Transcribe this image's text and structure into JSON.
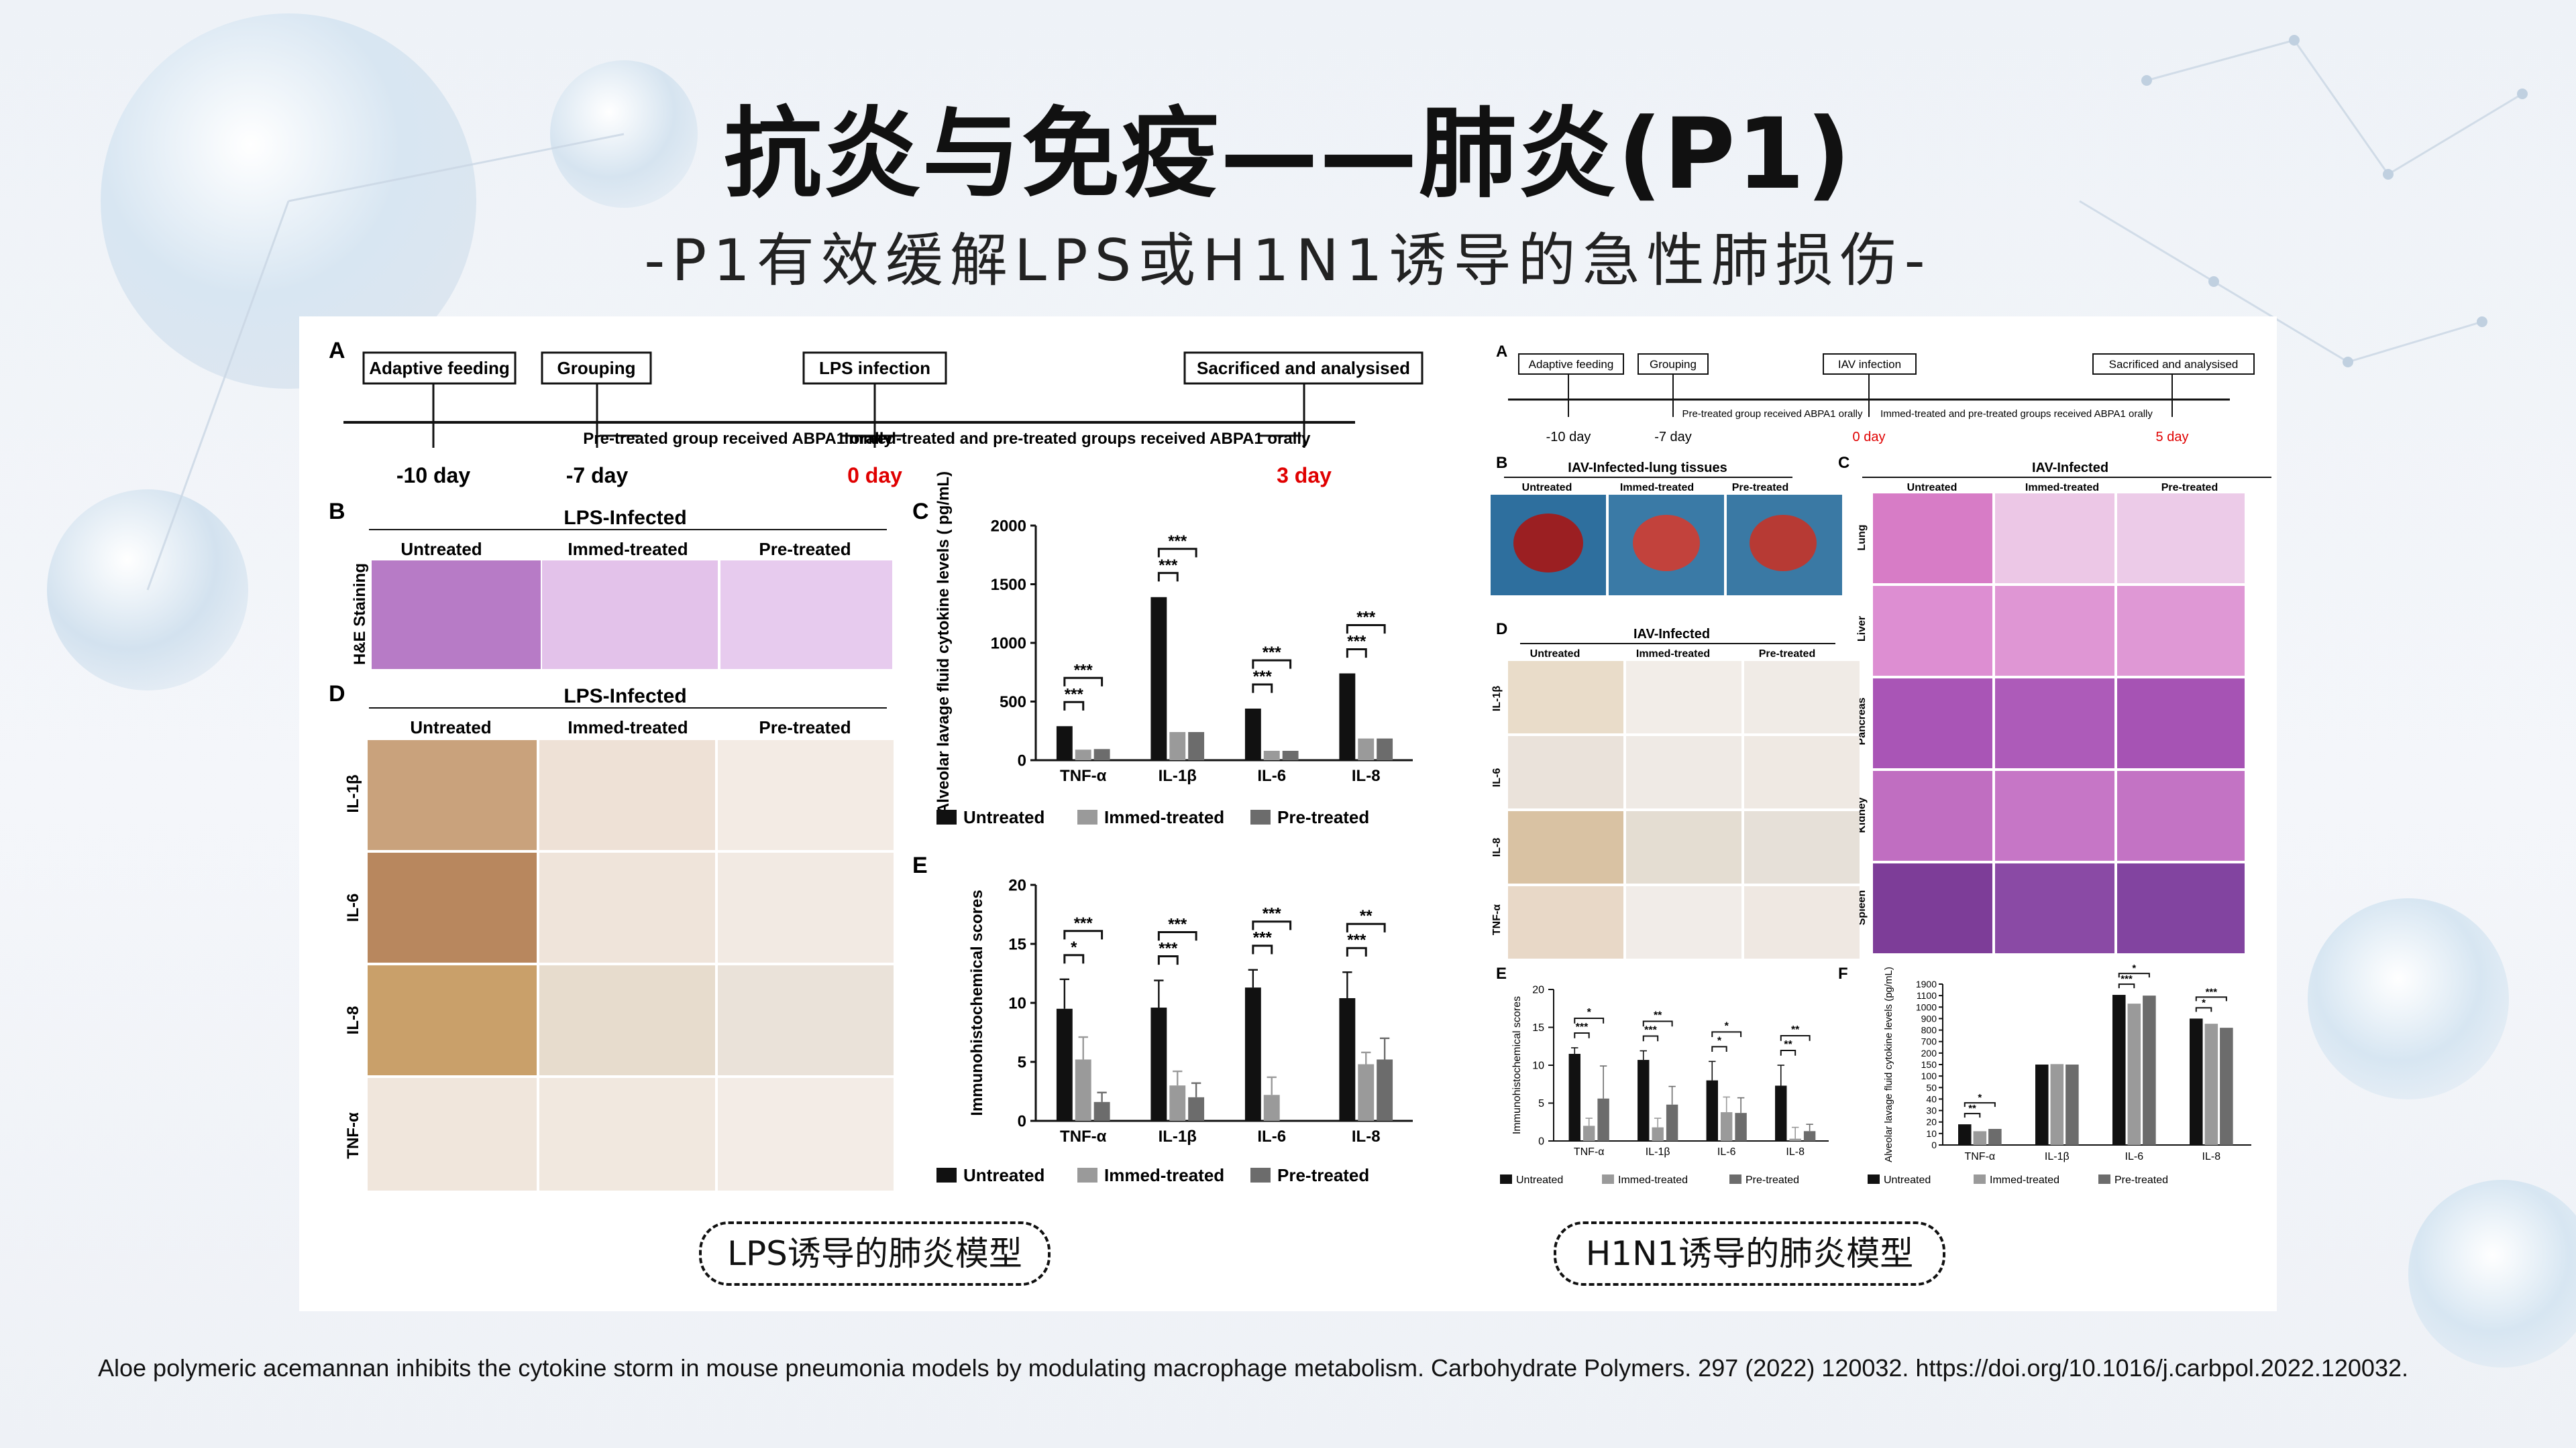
{
  "title": "抗炎与免疫——肺炎(P1)",
  "subtitle": "-P1有效缓解LPS或H1N1诱导的急性肺损伤-",
  "citation": "Aloe polymeric acemannan inhibits the cytokine storm in mouse pneumonia models by modulating macrophage metabolism. Carbohydrate Polymers. 297 (2022) 120032.  https://doi.org/10.1016/j.carbpol.2022.120032.",
  "captions": {
    "lps": "LPS诱导的肺炎模型",
    "h1n1": "H1N1诱导的肺炎模型"
  },
  "colors": {
    "untreated": "#111111",
    "immed": "#9a9a9a",
    "pre": "#6c6c6c",
    "accent_red": "#e00000",
    "he_stain": "#b77bc6",
    "ihc_stain": "#c9a27c"
  },
  "lps_figure": {
    "panel_labels": {
      "a": "A",
      "b": "B",
      "c": "C",
      "d": "D",
      "e": "E"
    },
    "timeline": {
      "boxes": [
        "Adaptive feeding",
        "Grouping",
        "LPS infection",
        "Sacrificed and analysised"
      ],
      "days": [
        "-10 day",
        "-7 day",
        "0 day",
        "3 day"
      ],
      "notes": [
        "Pre-treated group received ABPA1 orally",
        "Immed-treated and pre-treated groups received ABPA1 orally"
      ]
    },
    "he_section": {
      "title": "LPS-Infected",
      "row_label": "H&E Staining",
      "columns": [
        "Untreated",
        "Immed-treated",
        "Pre-treated"
      ]
    },
    "ihc_section": {
      "title": "LPS-Infected",
      "columns": [
        "Untreated",
        "Immed-treated",
        "Pre-treated"
      ],
      "rows": [
        "IL-1β",
        "IL-6",
        "IL-8",
        "TNF-α"
      ]
    },
    "legend": [
      "Untreated",
      "Immed-treated",
      "Pre-treated"
    ]
  },
  "h1n1_figure": {
    "panel_labels": {
      "a": "A",
      "b": "B",
      "c": "C",
      "d": "D",
      "e": "E",
      "f": "F"
    },
    "timeline": {
      "boxes": [
        "Adaptive feeding",
        "Grouping",
        "IAV infection",
        "Sacrificed and analysised"
      ],
      "days": [
        "-10 day",
        "-7 day",
        "0 day",
        "5 day"
      ],
      "notes": [
        "Pre-treated group received ABPA1 orally",
        "Immed-treated and pre-treated groups received ABPA1 orally"
      ]
    },
    "lung_tissue": {
      "title": "IAV-Infected-lung tissues",
      "columns": [
        "Untreated",
        "Immed-treated",
        "Pre-treated"
      ]
    },
    "organ_section": {
      "title": "IAV-Infected",
      "columns": [
        "Untreated",
        "Immed-treated",
        "Pre-treated"
      ],
      "rows": [
        "Lung",
        "Liver",
        "Pancreas",
        "Kidney",
        "Spleen"
      ]
    },
    "ihc_section": {
      "title": "IAV-Infected",
      "columns": [
        "Untreated",
        "Immed-treated",
        "Pre-treated"
      ],
      "rows": [
        "IL-1β",
        "IL-6",
        "IL-8",
        "TNF-α"
      ]
    },
    "legend": [
      "Untreated",
      "Immed-treated",
      "Pre-treated"
    ]
  },
  "chart_data": [
    {
      "id": "lps-cytokine",
      "type": "bar",
      "panel": "C",
      "ylabel": "Alveolar lavage fluid cytokine levels ( pg/mL)",
      "ylim": [
        0,
        2000
      ],
      "yticks": [
        0,
        500,
        1000,
        1500,
        2000
      ],
      "categories": [
        "TNF-α",
        "IL-1β",
        "IL-6",
        "IL-8"
      ],
      "series": [
        {
          "name": "Untreated",
          "values": [
            290,
            1390,
            440,
            740
          ]
        },
        {
          "name": "Immed-treated",
          "values": [
            90,
            240,
            80,
            185
          ]
        },
        {
          "name": "Pre-treated",
          "values": [
            95,
            240,
            80,
            185
          ]
        }
      ],
      "significance": [
        [
          "***",
          "***"
        ],
        [
          "***",
          "***"
        ],
        [
          "***",
          "***"
        ],
        [
          "***",
          "***"
        ]
      ]
    },
    {
      "id": "lps-ihc",
      "type": "bar",
      "panel": "E",
      "ylabel": "Immunohistochemical scores",
      "ylim": [
        0,
        20
      ],
      "yticks": [
        0,
        5,
        10,
        15,
        20
      ],
      "categories": [
        "TNF-α",
        "IL-1β",
        "IL-6",
        "IL-8"
      ],
      "series": [
        {
          "name": "Untreated",
          "values": [
            9.5,
            9.6,
            11.3,
            10.4
          ],
          "errors": [
            2.5,
            2.3,
            1.5,
            2.2
          ]
        },
        {
          "name": "Immed-treated",
          "values": [
            5.2,
            3.0,
            2.2,
            4.8
          ],
          "errors": [
            1.9,
            1.2,
            1.5,
            1.0
          ]
        },
        {
          "name": "Pre-treated",
          "values": [
            1.6,
            2.0,
            0,
            5.2
          ],
          "errors": [
            0.8,
            1.2,
            0,
            1.8
          ]
        }
      ],
      "significance": [
        [
          "*",
          "***"
        ],
        [
          "***",
          "***"
        ],
        [
          "***",
          "***"
        ],
        [
          "***",
          "**"
        ]
      ]
    },
    {
      "id": "h1n1-ihc",
      "type": "bar",
      "panel": "E",
      "ylabel": "Immunohistochemical scores",
      "ylim": [
        0,
        20
      ],
      "yticks": [
        0,
        5,
        10,
        15,
        20
      ],
      "categories": [
        "TNF-α",
        "IL-1β",
        "IL-6",
        "IL-8"
      ],
      "series": [
        {
          "name": "Untreated",
          "values": [
            11.5,
            10.7,
            8.0,
            7.3
          ],
          "errors": [
            0.8,
            1.2,
            2.5,
            2.7
          ]
        },
        {
          "name": "Immed-treated",
          "values": [
            2.0,
            1.8,
            3.8,
            0.3
          ],
          "errors": [
            1.0,
            1.2,
            2.0,
            1.5
          ]
        },
        {
          "name": "Pre-treated",
          "values": [
            5.6,
            4.8,
            3.7,
            1.3
          ],
          "errors": [
            4.3,
            2.4,
            2.0,
            0.9
          ]
        }
      ],
      "significance": [
        [
          "***",
          "*"
        ],
        [
          "***",
          "**"
        ],
        [
          "*",
          "*"
        ],
        [
          "**",
          "**"
        ]
      ]
    },
    {
      "id": "h1n1-cytokine",
      "type": "bar",
      "panel": "F",
      "ylabel": "Alveolar lavage fluid cytokine levels (pg/mL)",
      "broken_axis": true,
      "ytick_labels": [
        "0",
        "10",
        "20",
        "30",
        "40",
        "50",
        "100",
        "150",
        "200",
        "700",
        "800",
        "900",
        "1000",
        "1100",
        "1900"
      ],
      "categories": [
        "TNF-α",
        "IL-1β",
        "IL-6",
        "IL-8"
      ],
      "series": [
        {
          "name": "Untreated",
          "values": [
            18,
            150,
            1150,
            900
          ]
        },
        {
          "name": "Immed-treated",
          "values": [
            12,
            152,
            1030,
            855
          ]
        },
        {
          "name": "Pre-treated",
          "values": [
            14,
            150,
            1100,
            820
          ]
        }
      ],
      "significance": [
        [
          "**",
          "*"
        ],
        [
          "",
          ""
        ],
        [
          "***",
          "*"
        ],
        [
          "*",
          "***"
        ]
      ]
    }
  ]
}
